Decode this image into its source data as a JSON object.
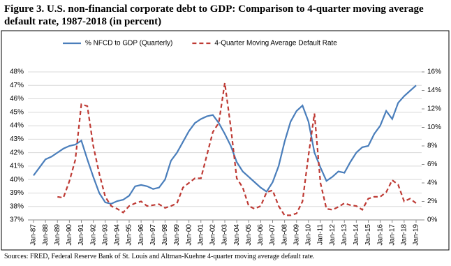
{
  "chart_data": {
    "type": "line",
    "title": "Figure 3. U.S. non-financial corporate debt to GDP: Comparison to 4-quarter moving average default rate, 1987-2018 (in percent)",
    "source": "Sources: FRED, Federal Reserve Bank of St. Louis and Altman-Kuehne 4-quarter moving average default rate.",
    "x": [
      1987,
      1987.5,
      1988,
      1988.5,
      1989,
      1989.5,
      1990,
      1990.5,
      1991,
      1991.5,
      1992,
      1992.5,
      1993,
      1993.5,
      1994,
      1994.5,
      1995,
      1995.5,
      1996,
      1996.5,
      1997,
      1997.5,
      1998,
      1998.5,
      1999,
      1999.5,
      2000,
      2000.5,
      2001,
      2001.5,
      2002,
      2002.5,
      2003,
      2003.5,
      2004,
      2004.5,
      2005,
      2005.5,
      2006,
      2006.5,
      2007,
      2007.5,
      2008,
      2008.5,
      2009,
      2009.5,
      2010,
      2010.5,
      2011,
      2011.5,
      2012,
      2012.5,
      2013,
      2013.5,
      2014,
      2014.5,
      2015,
      2015.5,
      2016,
      2016.5,
      2017,
      2017.5,
      2018,
      2018.5,
      2019
    ],
    "xlim": [
      1987,
      2019
    ],
    "xticks": [
      {
        "value": 1987,
        "label": "Jan-87"
      },
      {
        "value": 1988,
        "label": "Jan-88"
      },
      {
        "value": 1989,
        "label": "Jan-89"
      },
      {
        "value": 1990,
        "label": "Jan-90"
      },
      {
        "value": 1991,
        "label": "Jan-91"
      },
      {
        "value": 1992,
        "label": "Jan-92"
      },
      {
        "value": 1993,
        "label": "Jan-93"
      },
      {
        "value": 1994,
        "label": "Jan-94"
      },
      {
        "value": 1995,
        "label": "Jan-95"
      },
      {
        "value": 1996,
        "label": "Jan-96"
      },
      {
        "value": 1997,
        "label": "Jan-97"
      },
      {
        "value": 1998,
        "label": "Jan-98"
      },
      {
        "value": 1999,
        "label": "Jan-99"
      },
      {
        "value": 2000,
        "label": "Jan-00"
      },
      {
        "value": 2001,
        "label": "Jan-01"
      },
      {
        "value": 2002,
        "label": "Jan-02"
      },
      {
        "value": 2003,
        "label": "Jan-03"
      },
      {
        "value": 2004,
        "label": "Jan-04"
      },
      {
        "value": 2005,
        "label": "Jan-05"
      },
      {
        "value": 2006,
        "label": "Jan-06"
      },
      {
        "value": 2007,
        "label": "Jan-07"
      },
      {
        "value": 2008,
        "label": "Jan-08"
      },
      {
        "value": 2009,
        "label": "Jan-09"
      },
      {
        "value": 2010,
        "label": "Jan-10"
      },
      {
        "value": 2011,
        "label": "Jan-11"
      },
      {
        "value": 2012,
        "label": "Jan-12"
      },
      {
        "value": 2013,
        "label": "Jan-13"
      },
      {
        "value": 2014,
        "label": "Jan-14"
      },
      {
        "value": 2015,
        "label": "Jan-15"
      },
      {
        "value": 2016,
        "label": "Jan-16"
      },
      {
        "value": 2017,
        "label": "Jan-17"
      },
      {
        "value": 2018,
        "label": "Jan-18"
      },
      {
        "value": 2019,
        "label": "Jan-19"
      }
    ],
    "ylim": [
      37,
      48
    ],
    "yticks": [
      {
        "value": 37,
        "label": "37%"
      },
      {
        "value": 38,
        "label": "38%"
      },
      {
        "value": 39,
        "label": "39%"
      },
      {
        "value": 40,
        "label": "40%"
      },
      {
        "value": 41,
        "label": "41%"
      },
      {
        "value": 42,
        "label": "42%"
      },
      {
        "value": 43,
        "label": "43%"
      },
      {
        "value": 44,
        "label": "44%"
      },
      {
        "value": 45,
        "label": "45%"
      },
      {
        "value": 46,
        "label": "46%"
      },
      {
        "value": 47,
        "label": "47%"
      },
      {
        "value": 48,
        "label": "48%"
      }
    ],
    "y2lim": [
      0,
      16
    ],
    "y2ticks": [
      {
        "value": 0,
        "label": "0%"
      },
      {
        "value": 2,
        "label": "2%"
      },
      {
        "value": 4,
        "label": "4%"
      },
      {
        "value": 6,
        "label": "6%"
      },
      {
        "value": 8,
        "label": "8%"
      },
      {
        "value": 10,
        "label": "10%"
      },
      {
        "value": 12,
        "label": "12%"
      },
      {
        "value": 14,
        "label": "14%"
      },
      {
        "value": 16,
        "label": "16%"
      }
    ],
    "grid": true,
    "legend": "top",
    "series": [
      {
        "name": "% NFCD to GDP (Quarterly)",
        "color": "#4a7ebb",
        "dash": false,
        "values": [
          40.3,
          40.9,
          41.5,
          41.7,
          42.0,
          42.3,
          42.5,
          42.6,
          42.9,
          41.5,
          40.2,
          39.0,
          38.3,
          38.2,
          38.4,
          38.5,
          38.8,
          39.5,
          39.6,
          39.5,
          39.3,
          39.4,
          40.0,
          41.4,
          42.0,
          42.8,
          43.6,
          44.2,
          44.5,
          44.7,
          44.8,
          44.2,
          43.4,
          42.5,
          41.3,
          40.6,
          40.2,
          39.8,
          39.4,
          39.1,
          39.8,
          41.0,
          42.8,
          44.3,
          45.1,
          45.5,
          44.3,
          42.0,
          40.9,
          39.9,
          40.2,
          40.6,
          40.5,
          41.3,
          42.0,
          42.4,
          42.5,
          43.4,
          44.0,
          45.1,
          44.5,
          45.7,
          46.2,
          46.6,
          47.0
        ]
      },
      {
        "name": "4-Quarter Moving Average Default Rate",
        "color": "#be3a34",
        "dash": true,
        "axis": "y2",
        "values": [
          null,
          null,
          null,
          null,
          2.5,
          2.4,
          4.2,
          6.5,
          12.5,
          12.3,
          8.0,
          5.0,
          2.5,
          1.5,
          1.2,
          0.8,
          1.5,
          1.8,
          2.0,
          1.5,
          1.6,
          1.7,
          1.3,
          1.5,
          1.8,
          3.5,
          4.0,
          4.5,
          4.5,
          7.0,
          9.5,
          10.5,
          14.8,
          10.0,
          4.5,
          3.5,
          1.5,
          1.2,
          1.5,
          3.0,
          3.2,
          1.5,
          0.5,
          0.5,
          0.7,
          2.0,
          7.0,
          11.5,
          4.0,
          1.2,
          1.1,
          1.4,
          1.8,
          1.6,
          1.5,
          1.1,
          2.3,
          2.5,
          2.5,
          3.0,
          4.3,
          3.8,
          2.0,
          2.3,
          1.8
        ]
      }
    ]
  }
}
